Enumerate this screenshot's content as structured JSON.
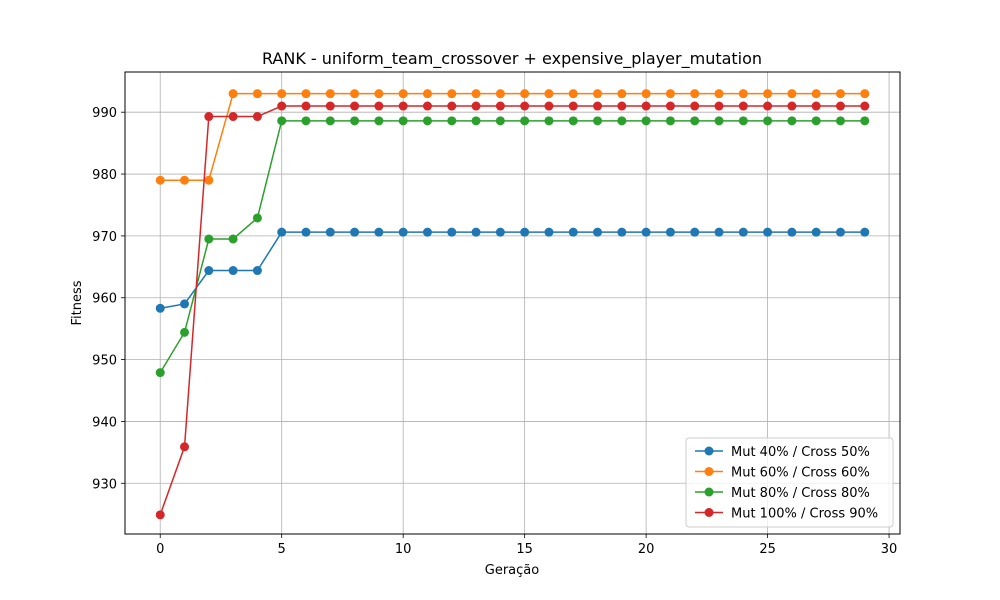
{
  "chart_data": {
    "type": "line",
    "title": "RANK - uniform_team_crossover + expensive_player_mutation",
    "xlabel": "Geração",
    "ylabel": "Fitness",
    "xlim": [
      -1.45,
      30.45
    ],
    "ylim": [
      921.8,
      996.5
    ],
    "xticks": [
      0,
      5,
      10,
      15,
      20,
      25,
      30
    ],
    "yticks": [
      930,
      940,
      950,
      960,
      970,
      980,
      990
    ],
    "grid": true,
    "legend_position": "lower right",
    "x": [
      0,
      1,
      2,
      3,
      4,
      5,
      6,
      7,
      8,
      9,
      10,
      11,
      12,
      13,
      14,
      15,
      16,
      17,
      18,
      19,
      20,
      21,
      22,
      23,
      24,
      25,
      26,
      27,
      28,
      29
    ],
    "series": [
      {
        "name": "Mut 40% / Cross 50%",
        "color": "#1f77b4",
        "values": [
          958.3,
          959.0,
          964.4,
          964.4,
          964.4,
          970.6,
          970.6,
          970.6,
          970.6,
          970.6,
          970.6,
          970.6,
          970.6,
          970.6,
          970.6,
          970.6,
          970.6,
          970.6,
          970.6,
          970.6,
          970.6,
          970.6,
          970.6,
          970.6,
          970.6,
          970.6,
          970.6,
          970.6,
          970.6,
          970.6
        ]
      },
      {
        "name": "Mut 60% / Cross 60%",
        "color": "#ff7f0e",
        "values": [
          979.0,
          979.0,
          979.0,
          993.0,
          993.0,
          993.0,
          993.0,
          993.0,
          993.0,
          993.0,
          993.0,
          993.0,
          993.0,
          993.0,
          993.0,
          993.0,
          993.0,
          993.0,
          993.0,
          993.0,
          993.0,
          993.0,
          993.0,
          993.0,
          993.0,
          993.0,
          993.0,
          993.0,
          993.0,
          993.0
        ]
      },
      {
        "name": "Mut 80% / Cross 80%",
        "color": "#2ca02c",
        "values": [
          947.9,
          954.4,
          969.5,
          969.5,
          972.9,
          988.6,
          988.6,
          988.6,
          988.6,
          988.6,
          988.6,
          988.6,
          988.6,
          988.6,
          988.6,
          988.6,
          988.6,
          988.6,
          988.6,
          988.6,
          988.6,
          988.6,
          988.6,
          988.6,
          988.6,
          988.6,
          988.6,
          988.6,
          988.6,
          988.6
        ]
      },
      {
        "name": "Mut 100% / Cross 90%",
        "color": "#d62728",
        "values": [
          924.9,
          935.9,
          989.3,
          989.3,
          989.3,
          991.0,
          991.0,
          991.0,
          991.0,
          991.0,
          991.0,
          991.0,
          991.0,
          991.0,
          991.0,
          991.0,
          991.0,
          991.0,
          991.0,
          991.0,
          991.0,
          991.0,
          991.0,
          991.0,
          991.0,
          991.0,
          991.0,
          991.0,
          991.0,
          991.0
        ]
      }
    ]
  }
}
